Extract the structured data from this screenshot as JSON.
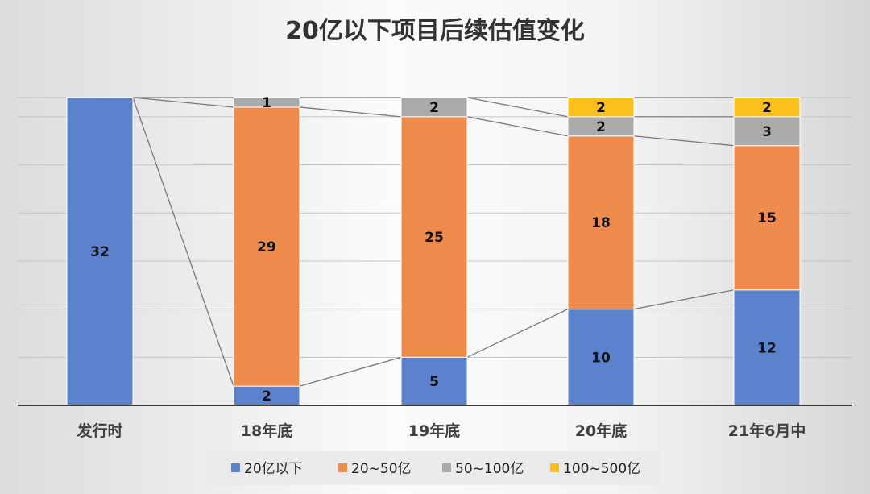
{
  "chart_data": {
    "type": "bar",
    "stacked": true,
    "title": "20亿以下项目后续估值变化",
    "categories": [
      "发行时",
      "18年底",
      "19年底",
      "20年底",
      "21年6月中"
    ],
    "series": [
      {
        "name": "20亿以下",
        "color": "#5b82cc",
        "values": [
          32,
          2,
          5,
          10,
          12
        ]
      },
      {
        "name": "20~50亿",
        "color": "#ee8c4e",
        "values": [
          0,
          29,
          25,
          18,
          15
        ]
      },
      {
        "name": "50~100亿",
        "color": "#aaaaaa",
        "values": [
          0,
          1,
          2,
          2,
          3
        ]
      },
      {
        "name": "100~500亿",
        "color": "#fcc01a",
        "values": [
          0,
          0,
          0,
          2,
          2
        ]
      }
    ],
    "ylim": [
      0,
      32
    ],
    "grid": true,
    "legend_position": "bottom"
  }
}
